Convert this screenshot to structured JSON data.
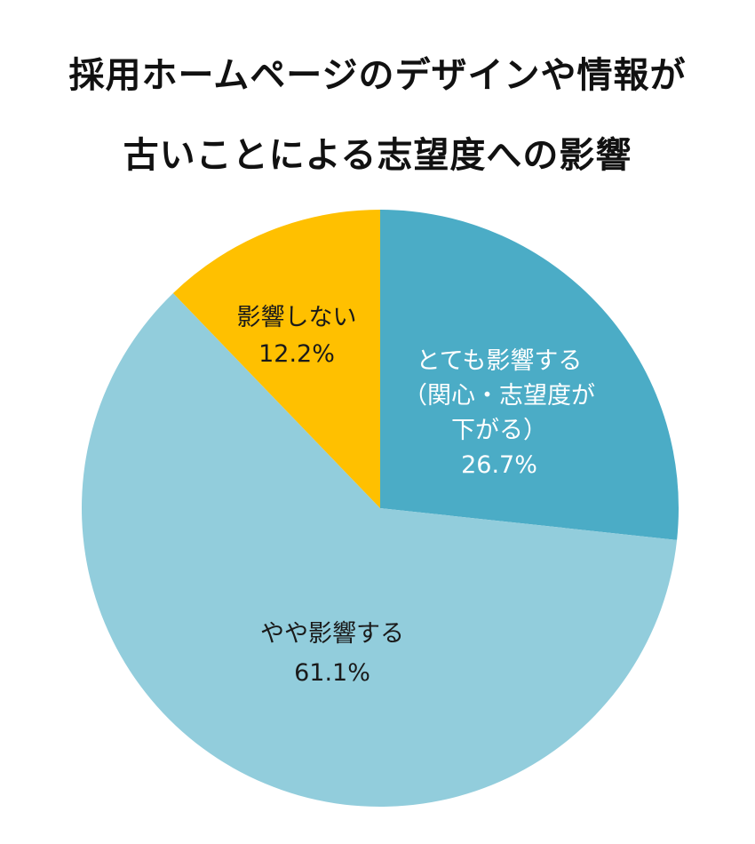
{
  "chart_data": {
    "type": "pie",
    "title": [
      "採用ホームページのデザインや情報が",
      "古いことによる志望度への影響"
    ],
    "slices": [
      {
        "label": [
          "とても影響する",
          "（関心・志望度が",
          "下がる）"
        ],
        "value": 26.7,
        "value_label": "26.7%",
        "color": "#4BACC6"
      },
      {
        "label": [
          "やや影響する"
        ],
        "value": 61.1,
        "value_label": "61.1%",
        "color": "#92CDDC"
      },
      {
        "label": [
          "影響しない"
        ],
        "value": 12.2,
        "value_label": "12.2%",
        "color": "#FFC000"
      }
    ],
    "legend": "none",
    "start_angle": "12 o'clock",
    "direction": "clockwise"
  }
}
